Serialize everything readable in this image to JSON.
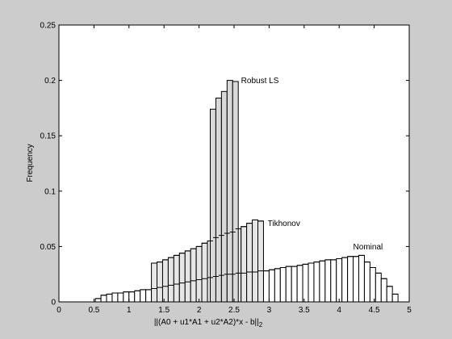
{
  "chart_data": {
    "type": "bar",
    "xlabel": "||(A0 + u1*A1 + u2*A2)*x - b||",
    "xlabel_subscript": "2",
    "ylabel": "Frequency",
    "xlim": [
      0,
      5
    ],
    "ylim": [
      0,
      0.25
    ],
    "xticks": [
      "0",
      "0.5",
      "1",
      "1.5",
      "2",
      "2.5",
      "3",
      "3.5",
      "4",
      "4.5",
      "5"
    ],
    "yticks": [
      "0",
      "0.05",
      "0.1",
      "0.15",
      "0.2",
      "0.25"
    ],
    "grid": false,
    "series": [
      {
        "name": "Nominal",
        "fill": "#ffffff",
        "bin_width": 0.08,
        "x": [
          0.52,
          0.6,
          0.68,
          0.76,
          0.84,
          0.92,
          1.0,
          1.08,
          1.16,
          1.24,
          1.32,
          1.4,
          1.48,
          1.56,
          1.64,
          1.72,
          1.8,
          1.88,
          1.96,
          2.04,
          2.12,
          2.2,
          2.28,
          2.36,
          2.44,
          2.52,
          2.6,
          2.68,
          2.76,
          2.84,
          2.92,
          3.0,
          3.08,
          3.16,
          3.24,
          3.32,
          3.4,
          3.48,
          3.56,
          3.64,
          3.72,
          3.8,
          3.88,
          3.96,
          4.04,
          4.12,
          4.2,
          4.28,
          4.36,
          4.44,
          4.52,
          4.6,
          4.68,
          4.76
        ],
        "values": [
          0.003,
          0.006,
          0.007,
          0.008,
          0.008,
          0.009,
          0.009,
          0.01,
          0.011,
          0.011,
          0.012,
          0.013,
          0.014,
          0.015,
          0.016,
          0.017,
          0.018,
          0.019,
          0.02,
          0.021,
          0.022,
          0.023,
          0.024,
          0.025,
          0.025,
          0.026,
          0.026,
          0.027,
          0.027,
          0.028,
          0.028,
          0.029,
          0.03,
          0.031,
          0.032,
          0.032,
          0.033,
          0.034,
          0.035,
          0.036,
          0.037,
          0.038,
          0.038,
          0.039,
          0.04,
          0.041,
          0.041,
          0.042,
          0.036,
          0.031,
          0.026,
          0.021,
          0.014,
          0.007
        ]
      },
      {
        "name": "Tikhonov",
        "fill": "#e6e6e6",
        "bin_width": 0.08,
        "x": [
          1.32,
          1.4,
          1.48,
          1.56,
          1.64,
          1.72,
          1.8,
          1.88,
          1.96,
          2.04,
          2.12,
          2.2,
          2.28,
          2.36,
          2.44,
          2.52,
          2.6,
          2.68,
          2.76,
          2.84
        ],
        "values": [
          0.035,
          0.036,
          0.038,
          0.04,
          0.042,
          0.044,
          0.046,
          0.048,
          0.05,
          0.053,
          0.055,
          0.058,
          0.06,
          0.062,
          0.063,
          0.066,
          0.068,
          0.071,
          0.074,
          0.073
        ]
      },
      {
        "name": "Robust LS",
        "fill": "#d9d9d9",
        "bin_width": 0.08,
        "x": [
          2.16,
          2.24,
          2.32,
          2.4,
          2.48
        ],
        "values": [
          0.174,
          0.184,
          0.19,
          0.2,
          0.199
        ]
      }
    ],
    "annotations": [
      {
        "text": "Robust LS",
        "x": 2.6,
        "y": 0.2
      },
      {
        "text": "Tikhonov",
        "x": 2.98,
        "y": 0.071
      },
      {
        "text": "Nominal",
        "x": 4.2,
        "y": 0.05
      }
    ]
  }
}
